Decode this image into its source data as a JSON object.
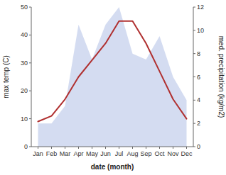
{
  "chart_data": {
    "type": "line",
    "x_label": "date (month)",
    "y_label": "max temp (C)",
    "y2_label": "med. precipitation (kg/m2)",
    "categories": [
      "Jan",
      "Feb",
      "Mar",
      "Apr",
      "May",
      "Jun",
      "Jul",
      "Aug",
      "Sep",
      "Oct",
      "Nov",
      "Dec"
    ],
    "series": [
      {
        "type": "area",
        "axis": "y2",
        "color": "#b8c4e8",
        "values": [
          2.0,
          2.0,
          3.5,
          10.5,
          7.5,
          10.5,
          12.0,
          8.0,
          7.5,
          9.5,
          6.0,
          4.0
        ]
      },
      {
        "type": "line",
        "color": "#b03030",
        "values": [
          9,
          11,
          17,
          25,
          31,
          37,
          45,
          45,
          37,
          27,
          17,
          10
        ]
      }
    ],
    "ylim": [
      0,
      50
    ],
    "yticks": [
      0,
      10,
      20,
      30,
      40,
      50
    ],
    "y2lim": [
      0,
      12
    ],
    "y2ticks": [
      0,
      2,
      4,
      6,
      8,
      10,
      12
    ],
    "grid": false
  }
}
